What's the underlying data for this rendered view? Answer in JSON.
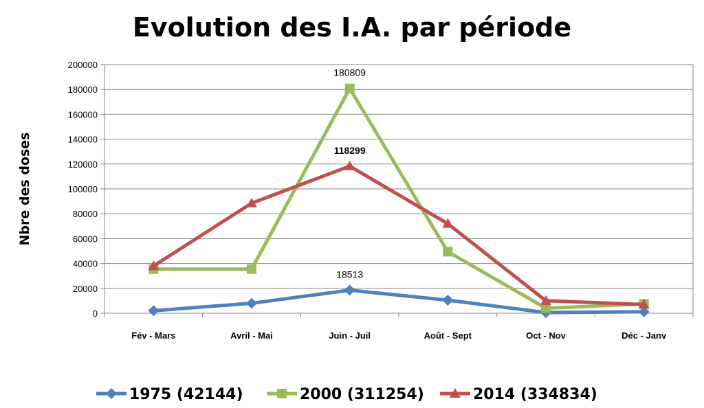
{
  "chart_data": {
    "type": "line",
    "title": "Evolution des I.A. par période",
    "xlabel": "",
    "ylabel": "Nbre des doses",
    "ylim": [
      0,
      200000
    ],
    "yticks": [
      0,
      20000,
      40000,
      60000,
      80000,
      100000,
      120000,
      140000,
      160000,
      180000,
      200000
    ],
    "grid": true,
    "legend": "bottom",
    "categories": [
      "Fév - Mars",
      "Avril - Mai",
      "Juin - Juil",
      "Août - Sept",
      "Oct - Nov",
      "Déc - Janv"
    ],
    "series": [
      {
        "name": "1975 (42144)",
        "color": "#4f81bd",
        "marker": "diamond",
        "values": [
          2000,
          8000,
          18513,
          10500,
          500,
          1200
        ]
      },
      {
        "name": "2000 (311254)",
        "color": "#9bbb59",
        "marker": "square",
        "values": [
          35500,
          35500,
          180809,
          49500,
          4000,
          7500
        ]
      },
      {
        "name": "2014 (334834)",
        "color": "#c0504d",
        "marker": "triangle",
        "values": [
          38000,
          88500,
          118299,
          72000,
          10000,
          7000
        ]
      }
    ],
    "annotations": [
      {
        "series": 0,
        "index": 2,
        "text": "18513",
        "bold": false
      },
      {
        "series": 1,
        "index": 2,
        "text": "180809",
        "bold": false
      },
      {
        "series": 2,
        "index": 2,
        "text": "118299",
        "bold": true
      }
    ]
  }
}
